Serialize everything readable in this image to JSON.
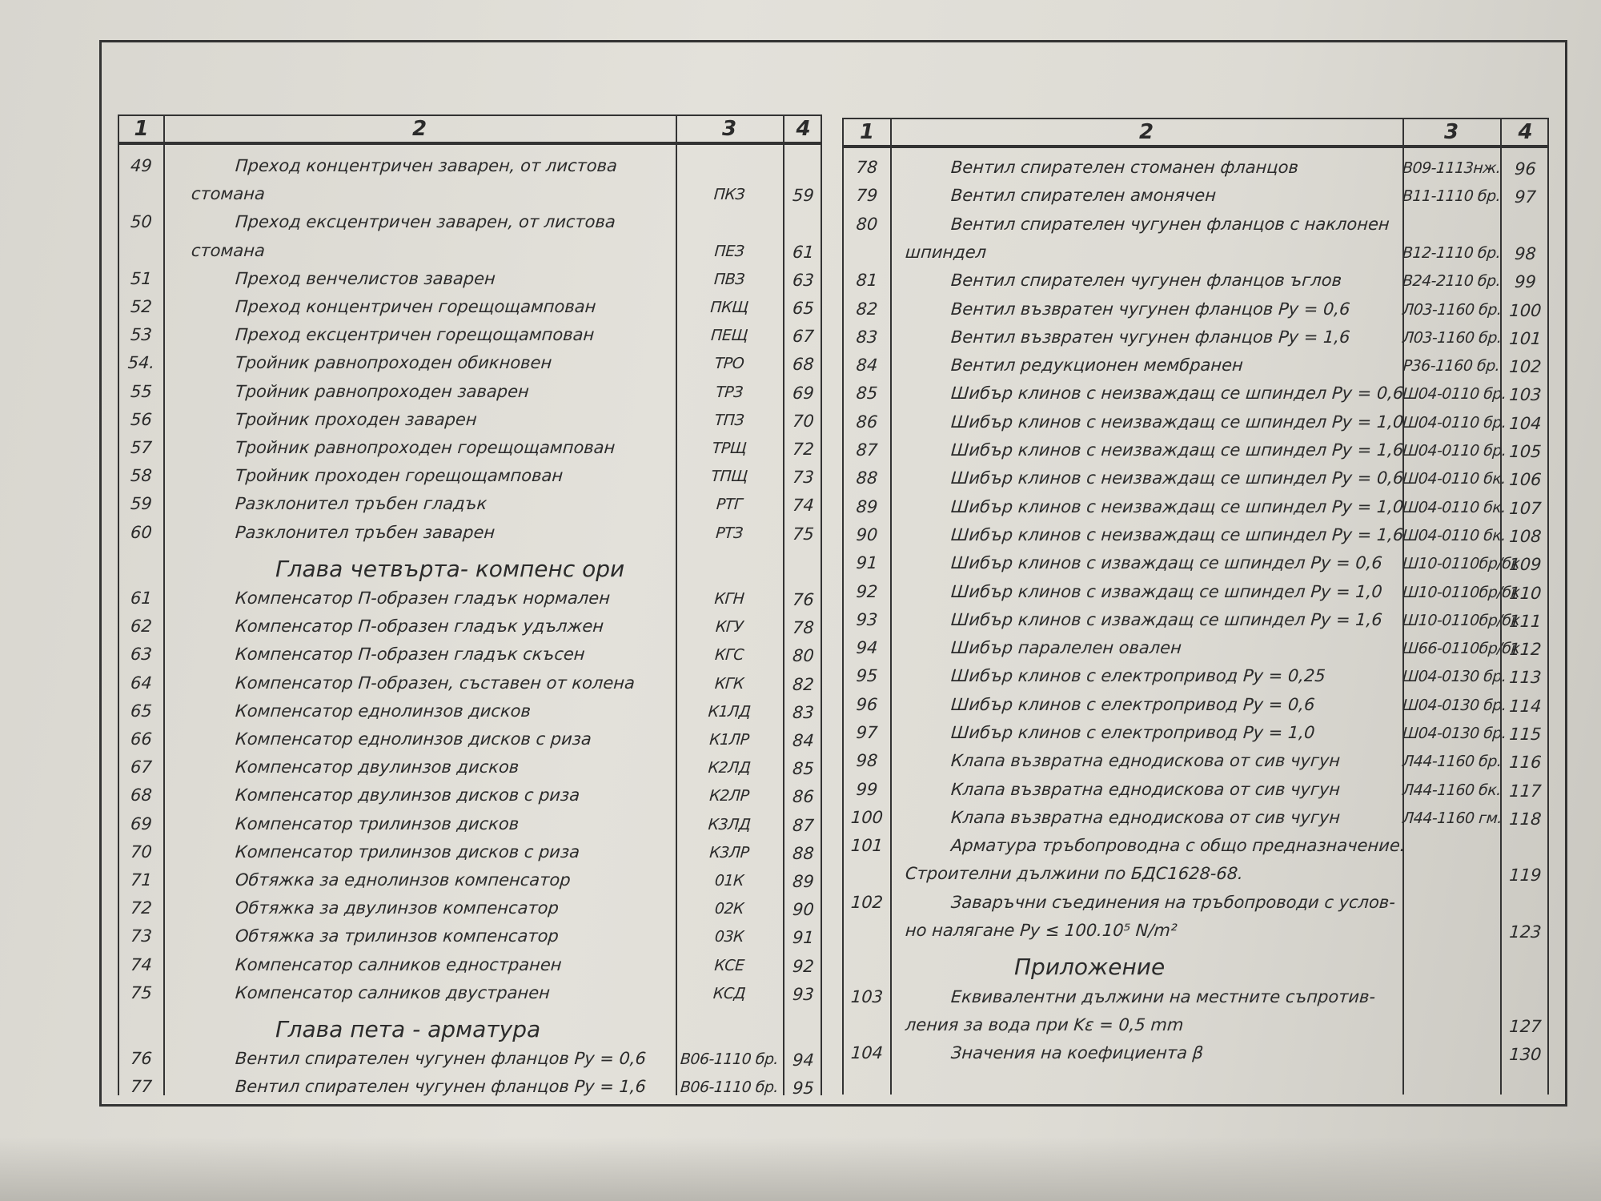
{
  "headers": [
    "1",
    "2",
    "3",
    "4"
  ],
  "left": [
    {
      "num": "49",
      "lines": [
        "Преход концентричен заварен, от листова",
        "стомана"
      ],
      "code": "ПКЗ",
      "page": "59"
    },
    {
      "num": "50",
      "lines": [
        "Преход ексцентричен заварен, от листова",
        "стомана"
      ],
      "code": "ПЕЗ",
      "page": "61"
    },
    {
      "num": "51",
      "lines": [
        "Преход венчелистов заварен"
      ],
      "code": "ПВЗ",
      "page": "63"
    },
    {
      "num": "52",
      "lines": [
        "Преход концентричен горещощампован"
      ],
      "code": "ПКЩ",
      "page": "65"
    },
    {
      "num": "53",
      "lines": [
        "Преход ексцентричен горещощампован"
      ],
      "code": "ПЕЩ",
      "page": "67"
    },
    {
      "num": "54.",
      "lines": [
        "Тройник равнопроходен обикновен"
      ],
      "code": "ТРО",
      "page": "68"
    },
    {
      "num": "55",
      "lines": [
        "Тройник равнопроходен заварен"
      ],
      "code": "ТРЗ",
      "page": "69"
    },
    {
      "num": "56",
      "lines": [
        "Тройник проходен заварен"
      ],
      "code": "ТПЗ",
      "page": "70"
    },
    {
      "num": "57",
      "lines": [
        "Тройник равнопроходен горещощампован"
      ],
      "code": "ТРЩ",
      "page": "72"
    },
    {
      "num": "58",
      "lines": [
        "Тройник проходен горещощампован"
      ],
      "code": "ТПЩ",
      "page": "73"
    },
    {
      "num": "59",
      "lines": [
        "Разклонител тръбен гладък"
      ],
      "code": "РТГ",
      "page": "74"
    },
    {
      "num": "60",
      "lines": [
        "Разклонител тръбен заварен"
      ],
      "code": "РТЗ",
      "page": "75"
    },
    {
      "heading": "Глава четвърта- компенс    ори"
    },
    {
      "num": "61",
      "lines": [
        "Компенсатор П-образен гладък нормален"
      ],
      "code": "КГН",
      "page": "76"
    },
    {
      "num": "62",
      "lines": [
        "Компенсатор П-образен гладък удължен"
      ],
      "code": "КГУ",
      "page": "78"
    },
    {
      "num": "63",
      "lines": [
        "Компенсатор П-образен гладък скъсен"
      ],
      "code": "КГС",
      "page": "80"
    },
    {
      "num": "64",
      "lines": [
        "Компенсатор П-образен, съставен от колена"
      ],
      "code": "КГК",
      "page": "82"
    },
    {
      "num": "65",
      "lines": [
        "Компенсатор еднолинзов дисков"
      ],
      "code": "К1ЛД",
      "page": "83"
    },
    {
      "num": "66",
      "lines": [
        "Компенсатор еднолинзов дисков с риза"
      ],
      "code": "К1ЛР",
      "page": "84"
    },
    {
      "num": "67",
      "lines": [
        "Компенсатор двулинзов дисков"
      ],
      "code": "К2ЛД",
      "page": "85"
    },
    {
      "num": "68",
      "lines": [
        "Компенсатор двулинзов дисков с риза"
      ],
      "code": "К2ЛР",
      "page": "86"
    },
    {
      "num": "69",
      "lines": [
        "Компенсатор трилинзов дисков"
      ],
      "code": "К3ЛД",
      "page": "87"
    },
    {
      "num": "70",
      "lines": [
        "Компенсатор трилинзов дисков с риза"
      ],
      "code": "К3ЛР",
      "page": "88"
    },
    {
      "num": "71",
      "lines": [
        "Обтяжка за еднолинзов компенсатор"
      ],
      "code": "01К",
      "page": "89"
    },
    {
      "num": "72",
      "lines": [
        "Обтяжка за двулинзов компенсатор"
      ],
      "code": "02К",
      "page": "90"
    },
    {
      "num": "73",
      "lines": [
        "Обтяжка за трилинзов компенсатор"
      ],
      "code": "03К",
      "page": "91"
    },
    {
      "num": "74",
      "lines": [
        "Компенсатор салников едностранен"
      ],
      "code": "КСЕ",
      "page": "92"
    },
    {
      "num": "75",
      "lines": [
        "Компенсатор салников двустранен"
      ],
      "code": "КСД",
      "page": "93"
    },
    {
      "heading": "Глава пета - арматура"
    },
    {
      "num": "76",
      "lines": [
        "Вентил спирателен чугунен фланцов  Py = 0,6"
      ],
      "code": "В06-1110 бр.",
      "page": "94"
    },
    {
      "num": "77",
      "lines": [
        "Вентил спирателен чугунен фланцов  Py = 1,6"
      ],
      "code": "В06-1110 бр.",
      "page": "95"
    }
  ],
  "right": [
    {
      "num": "78",
      "lines": [
        "Вентил спирателен стоманен фланцов"
      ],
      "code": "В09-1113нж.",
      "page": "96"
    },
    {
      "num": "79",
      "lines": [
        "Вентил спирателен амонячен"
      ],
      "code": "В11-1110 бр.",
      "page": "97"
    },
    {
      "num": "80",
      "lines": [
        "Вентил спирателен чугунен фланцов с наклонен",
        "шпиндел"
      ],
      "code": "В12-1110 бр.",
      "page": "98"
    },
    {
      "num": "81",
      "lines": [
        "Вентил спирателен чугунен фланцов ъглов"
      ],
      "code": "В24-2110 бр.",
      "page": "99"
    },
    {
      "num": "82",
      "lines": [
        "Вентил възвратен чугунен фланцов  Py = 0,6"
      ],
      "code": "Л03-1160 бр.",
      "page": "100"
    },
    {
      "num": "83",
      "lines": [
        "Вентил възвратен чугунен фланцов  Py = 1,6"
      ],
      "code": "Л03-1160 бр.",
      "page": "101"
    },
    {
      "num": "84",
      "lines": [
        "Вентил редукционен мембранен"
      ],
      "code": "Р36-1160 бр.",
      "page": "102"
    },
    {
      "num": "85",
      "lines": [
        "Шибър клинов с неизваждащ се шпиндел  Py = 0,6"
      ],
      "code": "Ш04-0110 бр.",
      "page": "103"
    },
    {
      "num": "86",
      "lines": [
        "Шибър клинов с неизваждащ се шпиндел  Py = 1,0"
      ],
      "code": "Ш04-0110 бр.",
      "page": "104"
    },
    {
      "num": "87",
      "lines": [
        "Шибър клинов с неизваждащ се шпиндел  Py = 1,6"
      ],
      "code": "Ш04-0110 бр.",
      "page": "105"
    },
    {
      "num": "88",
      "lines": [
        "Шибър клинов с неизваждащ се шпиндел  Py = 0,6"
      ],
      "code": "Ш04-0110 бк.",
      "page": "106"
    },
    {
      "num": "89",
      "lines": [
        "Шибър клинов с неизваждащ се шпиндел  Py = 1,0"
      ],
      "code": "Ш04-0110 бк.",
      "page": "107"
    },
    {
      "num": "90",
      "lines": [
        "Шибър клинов с неизваждащ се шпиндел  Py = 1,6"
      ],
      "code": "Ш04-0110 бк.",
      "page": "108"
    },
    {
      "num": "91",
      "lines": [
        "Шибър клинов с изваждащ се шпиндел  Py = 0,6"
      ],
      "code": "Ш10-0110бр/бк",
      "page": "109"
    },
    {
      "num": "92",
      "lines": [
        "Шибър клинов с изваждащ се шпиндел  Py = 1,0"
      ],
      "code": "Ш10-0110бр/бк",
      "page": "110"
    },
    {
      "num": "93",
      "lines": [
        "Шибър клинов с изваждащ се шпиндел  Py = 1,6"
      ],
      "code": "Ш10-0110бр/бк",
      "page": "111"
    },
    {
      "num": "94",
      "lines": [
        "Шибър паралелен овален"
      ],
      "code": "Ш66-0110бр/бк",
      "page": "112"
    },
    {
      "num": "95",
      "lines": [
        "Шибър клинов с електропривод  Py = 0,25"
      ],
      "code": "Ш04-0130 бр.",
      "page": "113"
    },
    {
      "num": "96",
      "lines": [
        "Шибър клинов с електропривод  Py = 0,6"
      ],
      "code": "Ш04-0130 бр.",
      "page": "114"
    },
    {
      "num": "97",
      "lines": [
        "Шибър клинов с електропривод  Py = 1,0"
      ],
      "code": "Ш04-0130 бр.",
      "page": "115"
    },
    {
      "num": "98",
      "lines": [
        "Клапа възвратна еднодискова от сив чугун"
      ],
      "code": "Л44-1160 бр.",
      "page": "116"
    },
    {
      "num": "99",
      "lines": [
        "Клапа възвратна еднодискова от сив чугун"
      ],
      "code": "Л44-1160 бк.",
      "page": "117"
    },
    {
      "num": "100",
      "lines": [
        "Клапа възвратна еднодискова от сив чугун"
      ],
      "code": "Л44-1160 гм.",
      "page": "118"
    },
    {
      "num": "101",
      "lines": [
        "Арматура тръбопроводна с общо предназначение.",
        "Строителни дължини по БДС1628-68."
      ],
      "code": "",
      "page": "119"
    },
    {
      "num": "102",
      "lines": [
        "Заваръчни съединения на тръбопроводи с услов-",
        "но налягане  Py ≤ 100.10⁵ N/m²"
      ],
      "code": "",
      "page": "123"
    },
    {
      "heading": "Приложение"
    },
    {
      "num": "103",
      "lines": [
        "Еквивалентни дължини на местните съпротив-",
        "ления за вода при  Kε = 0,5 mm"
      ],
      "code": "",
      "page": "127"
    },
    {
      "num": "104",
      "lines": [
        "Значения на коефициента β"
      ],
      "code": "",
      "page": "130"
    }
  ]
}
